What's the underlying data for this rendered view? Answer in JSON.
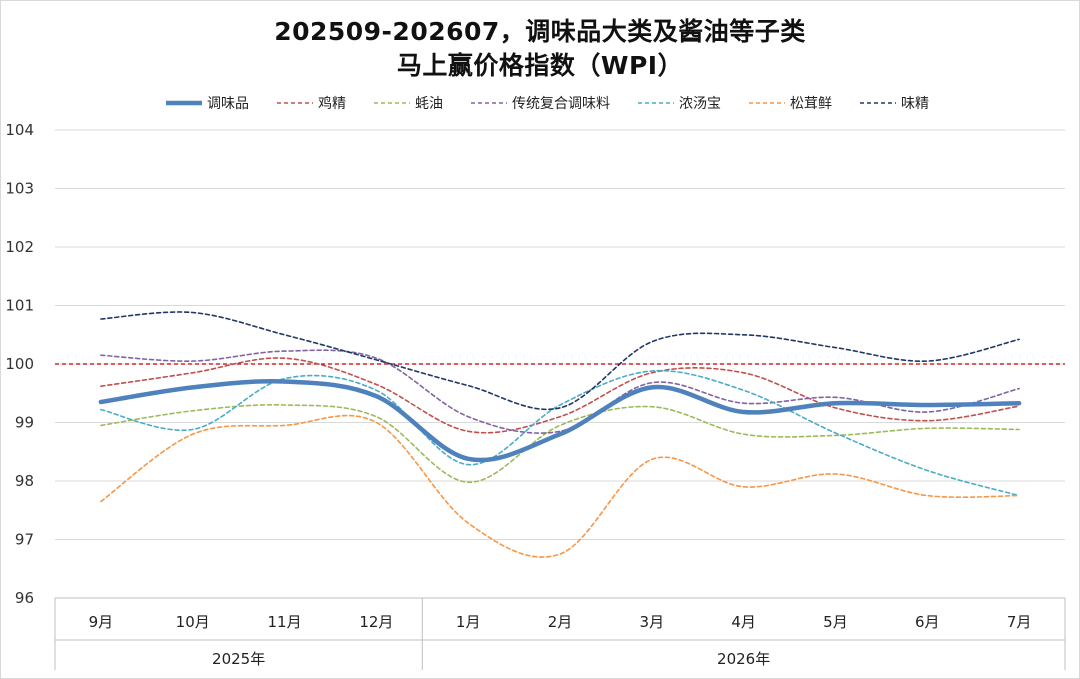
{
  "title_line1": "202509-202607，调味品大类及酱油等子类",
  "title_line2": "马上赢价格指数（WPI）",
  "chart_data": {
    "type": "line",
    "title": "202509-202607，调味品大类及酱油等子类 马上赢价格指数（WPI）",
    "categories": [
      "9月",
      "10月",
      "11月",
      "12月",
      "1月",
      "2月",
      "3月",
      "4月",
      "5月",
      "6月",
      "7月"
    ],
    "groups": [
      {
        "label": "2025年",
        "span": [
          0,
          3
        ]
      },
      {
        "label": "2026年",
        "span": [
          4,
          10
        ]
      }
    ],
    "ylim": [
      96,
      104
    ],
    "yticks": [
      96,
      97,
      98,
      99,
      100,
      101,
      102,
      103,
      104
    ],
    "reference_line": {
      "value": 100,
      "color": "#c00000",
      "dashed": true
    },
    "legend_position": "top",
    "grid": "horizontal",
    "series": [
      {
        "name": "调味品",
        "color": "#4f81bd",
        "width": 4.5,
        "dashed": false,
        "values": [
          99.35,
          99.6,
          99.7,
          99.45,
          98.38,
          98.8,
          99.6,
          99.18,
          99.33,
          99.3,
          99.33
        ]
      },
      {
        "name": "鸡精",
        "color": "#c0504d",
        "width": 1.6,
        "dashed": true,
        "values": [
          99.62,
          99.85,
          100.1,
          99.65,
          98.85,
          99.1,
          99.85,
          99.85,
          99.25,
          99.03,
          99.28
        ]
      },
      {
        "name": "蚝油",
        "color": "#9bbb59",
        "width": 1.6,
        "dashed": true,
        "values": [
          98.95,
          99.2,
          99.3,
          99.1,
          97.98,
          98.95,
          99.27,
          98.8,
          98.78,
          98.9,
          98.88
        ]
      },
      {
        "name": "传统复合调味料",
        "color": "#8064a2",
        "width": 1.6,
        "dashed": true,
        "values": [
          100.15,
          100.05,
          100.22,
          100.1,
          99.1,
          98.85,
          99.68,
          99.33,
          99.43,
          99.18,
          99.58
        ]
      },
      {
        "name": "浓汤宝",
        "color": "#4bacc6",
        "width": 1.6,
        "dashed": true,
        "values": [
          99.22,
          98.88,
          99.75,
          99.55,
          98.28,
          99.3,
          99.88,
          99.55,
          98.82,
          98.18,
          97.75
        ]
      },
      {
        "name": "松茸鲜",
        "color": "#f79646",
        "width": 1.6,
        "dashed": true,
        "values": [
          97.65,
          98.8,
          98.95,
          99.0,
          97.28,
          96.75,
          98.37,
          97.9,
          98.12,
          97.75,
          97.75
        ]
      },
      {
        "name": "味精",
        "color": "#1f3864",
        "width": 1.6,
        "dashed": true,
        "values": [
          100.77,
          100.88,
          100.5,
          100.07,
          99.63,
          99.25,
          100.38,
          100.5,
          100.28,
          100.05,
          100.42
        ]
      }
    ]
  }
}
